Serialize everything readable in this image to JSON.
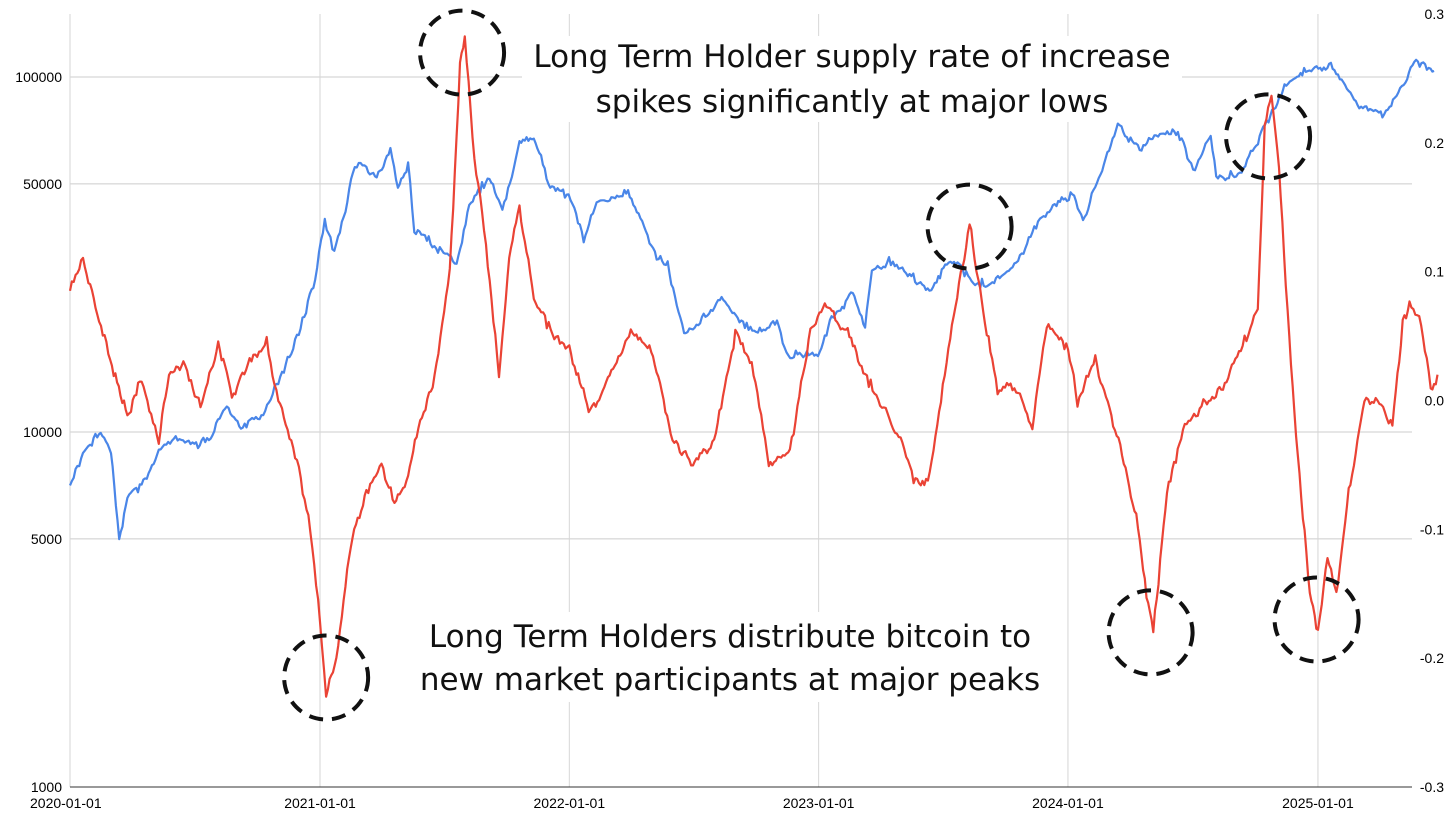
{
  "chart_data": {
    "type": "line",
    "title": "",
    "xlabel": "",
    "ylabel_left": "",
    "ylabel_right": "",
    "x_tick_labels": [
      "2020-01-01",
      "2021-01-01",
      "2022-01-01",
      "2023-01-01",
      "2024-01-01",
      "2025-01-01"
    ],
    "x_range": [
      "2020-01-01",
      "2025-06-30"
    ],
    "y_left": {
      "scale": "log",
      "range": [
        1000,
        150000
      ],
      "tick_labels": [
        "1000",
        "5000",
        "10000",
        "50000",
        "100000"
      ],
      "ticks": [
        1000,
        5000,
        10000,
        50000,
        100000
      ]
    },
    "y_right": {
      "scale": "linear",
      "range": [
        -0.3,
        0.3
      ],
      "tick_labels": [
        "-0.3",
        "-0.2",
        "-0.1",
        "0.0",
        "0.1",
        "0.2",
        "0.3"
      ],
      "ticks": [
        -0.3,
        -0.2,
        -0.1,
        0.0,
        0.1,
        0.2,
        0.3
      ]
    },
    "grid": true,
    "series": [
      {
        "key": "price",
        "axis": "left",
        "color": "#4a86e8",
        "points": [
          [
            "2020-01-01",
            7000
          ],
          [
            "2020-01-20",
            8800
          ],
          [
            "2020-02-15",
            10000
          ],
          [
            "2020-03-01",
            8700
          ],
          [
            "2020-03-13",
            5000
          ],
          [
            "2020-03-25",
            6500
          ],
          [
            "2020-04-20",
            7200
          ],
          [
            "2020-05-10",
            8800
          ],
          [
            "2020-06-01",
            9500
          ],
          [
            "2020-07-01",
            9200
          ],
          [
            "2020-07-25",
            9700
          ],
          [
            "2020-08-15",
            11800
          ],
          [
            "2020-09-10",
            10300
          ],
          [
            "2020-10-10",
            11300
          ],
          [
            "2020-11-01",
            13800
          ],
          [
            "2020-12-01",
            19000
          ],
          [
            "2020-12-25",
            27000
          ],
          [
            "2021-01-08",
            40000
          ],
          [
            "2021-01-22",
            32000
          ],
          [
            "2021-02-10",
            45000
          ],
          [
            "2021-02-21",
            57000
          ],
          [
            "2021-03-10",
            55000
          ],
          [
            "2021-03-25",
            52000
          ],
          [
            "2021-04-14",
            63000
          ],
          [
            "2021-04-25",
            49000
          ],
          [
            "2021-05-10",
            57000
          ],
          [
            "2021-05-19",
            37000
          ],
          [
            "2021-06-01",
            36000
          ],
          [
            "2021-06-20",
            33000
          ],
          [
            "2021-07-20",
            30000
          ],
          [
            "2021-08-10",
            45000
          ],
          [
            "2021-09-06",
            52000
          ],
          [
            "2021-09-25",
            42000
          ],
          [
            "2021-10-20",
            65000
          ],
          [
            "2021-11-10",
            68000
          ],
          [
            "2021-12-04",
            49000
          ],
          [
            "2021-12-31",
            47000
          ],
          [
            "2022-01-22",
            35000
          ],
          [
            "2022-02-10",
            44000
          ],
          [
            "2022-03-28",
            47000
          ],
          [
            "2022-04-15",
            40000
          ],
          [
            "2022-05-09",
            31000
          ],
          [
            "2022-05-25",
            29500
          ],
          [
            "2022-06-18",
            19000
          ],
          [
            "2022-07-01",
            19500
          ],
          [
            "2022-08-12",
            24000
          ],
          [
            "2022-09-15",
            20000
          ],
          [
            "2022-10-15",
            19200
          ],
          [
            "2022-11-01",
            20500
          ],
          [
            "2022-11-15",
            16500
          ],
          [
            "2022-12-31",
            16500
          ],
          [
            "2023-01-20",
            21000
          ],
          [
            "2023-02-20",
            24500
          ],
          [
            "2023-03-10",
            20000
          ],
          [
            "2023-03-20",
            28000
          ],
          [
            "2023-04-14",
            30400
          ],
          [
            "2023-05-01",
            29000
          ],
          [
            "2023-06-15",
            25000
          ],
          [
            "2023-07-13",
            31000
          ],
          [
            "2023-08-18",
            26000
          ],
          [
            "2023-09-15",
            26500
          ],
          [
            "2023-10-20",
            30000
          ],
          [
            "2023-11-10",
            37000
          ],
          [
            "2023-12-10",
            44000
          ],
          [
            "2024-01-10",
            46500
          ],
          [
            "2024-01-23",
            39500
          ],
          [
            "2024-02-15",
            52000
          ],
          [
            "2024-03-14",
            73000
          ],
          [
            "2024-04-15",
            63000
          ],
          [
            "2024-05-20",
            70000
          ],
          [
            "2024-06-10",
            69000
          ],
          [
            "2024-07-05",
            54000
          ],
          [
            "2024-07-28",
            69000
          ],
          [
            "2024-08-05",
            52000
          ],
          [
            "2024-09-06",
            53000
          ],
          [
            "2024-09-30",
            63000
          ],
          [
            "2024-11-13",
            93000
          ],
          [
            "2024-12-17",
            106000
          ],
          [
            "2025-01-20",
            108000
          ],
          [
            "2025-02-28",
            84000
          ],
          [
            "2025-04-08",
            77000
          ],
          [
            "2025-05-22",
            111000
          ],
          [
            "2025-06-20",
            104000
          ]
        ]
      },
      {
        "key": "lth_supply_rate",
        "axis": "right",
        "color": "#ea4335",
        "points": [
          [
            "2020-01-01",
            0.085
          ],
          [
            "2020-01-20",
            0.11
          ],
          [
            "2020-02-10",
            0.07
          ],
          [
            "2020-03-05",
            0.02
          ],
          [
            "2020-03-25",
            -0.01
          ],
          [
            "2020-04-15",
            0.015
          ],
          [
            "2020-05-10",
            -0.03
          ],
          [
            "2020-05-25",
            0.02
          ],
          [
            "2020-06-15",
            0.03
          ],
          [
            "2020-07-10",
            -0.005
          ],
          [
            "2020-08-05",
            0.045
          ],
          [
            "2020-08-25",
            0.005
          ],
          [
            "2020-09-20",
            0.03
          ],
          [
            "2020-10-15",
            0.045
          ],
          [
            "2020-11-01",
            0.0
          ],
          [
            "2020-11-20",
            -0.03
          ],
          [
            "2020-12-15",
            -0.09
          ],
          [
            "2021-01-01",
            -0.17
          ],
          [
            "2021-01-10",
            -0.23
          ],
          [
            "2021-01-25",
            -0.2
          ],
          [
            "2021-02-15",
            -0.11
          ],
          [
            "2021-03-10",
            -0.07
          ],
          [
            "2021-04-01",
            -0.05
          ],
          [
            "2021-04-20",
            -0.08
          ],
          [
            "2021-05-10",
            -0.06
          ],
          [
            "2021-05-25",
            -0.02
          ],
          [
            "2021-06-15",
            0.01
          ],
          [
            "2021-07-10",
            0.1
          ],
          [
            "2021-07-25",
            0.26
          ],
          [
            "2021-08-01",
            0.28
          ],
          [
            "2021-08-15",
            0.19
          ],
          [
            "2021-09-01",
            0.12
          ],
          [
            "2021-09-20",
            0.02
          ],
          [
            "2021-10-05",
            0.11
          ],
          [
            "2021-10-20",
            0.15
          ],
          [
            "2021-11-10",
            0.08
          ],
          [
            "2021-12-10",
            0.05
          ],
          [
            "2022-01-01",
            0.04
          ],
          [
            "2022-02-01",
            -0.01
          ],
          [
            "2022-03-01",
            0.02
          ],
          [
            "2022-04-01",
            0.055
          ],
          [
            "2022-05-01",
            0.04
          ],
          [
            "2022-06-01",
            -0.03
          ],
          [
            "2022-07-01",
            -0.05
          ],
          [
            "2022-08-01",
            -0.03
          ],
          [
            "2022-09-01",
            0.05
          ],
          [
            "2022-09-25",
            0.03
          ],
          [
            "2022-10-20",
            -0.05
          ],
          [
            "2022-11-20",
            -0.04
          ],
          [
            "2022-12-20",
            0.055
          ],
          [
            "2023-01-10",
            0.075
          ],
          [
            "2023-02-10",
            0.055
          ],
          [
            "2023-03-10",
            0.02
          ],
          [
            "2023-04-01",
            0.0
          ],
          [
            "2023-05-01",
            -0.03
          ],
          [
            "2023-05-20",
            -0.06
          ],
          [
            "2023-06-10",
            -0.065
          ],
          [
            "2023-07-10",
            0.04
          ],
          [
            "2023-08-10",
            0.138
          ],
          [
            "2023-08-30",
            0.07
          ],
          [
            "2023-09-20",
            0.01
          ],
          [
            "2023-10-20",
            0.01
          ],
          [
            "2023-11-10",
            -0.02
          ],
          [
            "2023-12-01",
            0.06
          ],
          [
            "2024-01-01",
            0.04
          ],
          [
            "2024-01-15",
            0.0
          ],
          [
            "2024-02-10",
            0.03
          ],
          [
            "2024-03-15",
            -0.03
          ],
          [
            "2024-04-10",
            -0.09
          ],
          [
            "2024-04-25",
            -0.15
          ],
          [
            "2024-05-05",
            -0.18
          ],
          [
            "2024-05-25",
            -0.07
          ],
          [
            "2024-06-20",
            -0.02
          ],
          [
            "2024-07-20",
            0.0
          ],
          [
            "2024-08-15",
            0.01
          ],
          [
            "2024-09-10",
            0.04
          ],
          [
            "2024-10-05",
            0.07
          ],
          [
            "2024-10-15",
            0.21
          ],
          [
            "2024-10-25",
            0.235
          ],
          [
            "2024-11-05",
            0.18
          ],
          [
            "2024-11-20",
            0.05
          ],
          [
            "2024-12-05",
            -0.06
          ],
          [
            "2024-12-20",
            -0.15
          ],
          [
            "2025-01-01",
            -0.18
          ],
          [
            "2025-01-15",
            -0.12
          ],
          [
            "2025-01-28",
            -0.15
          ],
          [
            "2025-02-15",
            -0.07
          ],
          [
            "2025-03-10",
            0.0
          ],
          [
            "2025-04-01",
            0.0
          ],
          [
            "2025-04-20",
            -0.02
          ],
          [
            "2025-05-05",
            0.06
          ],
          [
            "2025-05-15",
            0.075
          ],
          [
            "2025-06-01",
            0.06
          ],
          [
            "2025-06-15",
            0.01
          ],
          [
            "2025-06-25",
            0.02
          ]
        ]
      }
    ],
    "annotations": [
      {
        "key": "top",
        "lines": [
          "Long Term Holder supply rate of increase",
          "spikes significantly at major lows"
        ]
      },
      {
        "key": "bottom",
        "lines": [
          "Long Term Holders distribute bitcoin to",
          "new market participants at major peaks"
        ]
      }
    ],
    "highlight_circles": [
      {
        "date": "2021-01-10",
        "value": -0.215,
        "axis": "right"
      },
      {
        "date": "2021-07-28",
        "value": 0.27,
        "axis": "right"
      },
      {
        "date": "2023-08-10",
        "value": 0.135,
        "axis": "right"
      },
      {
        "date": "2024-05-01",
        "value": -0.18,
        "axis": "right"
      },
      {
        "date": "2024-10-20",
        "value": 0.205,
        "axis": "right"
      },
      {
        "date": "2024-12-30",
        "value": -0.17,
        "axis": "right"
      }
    ]
  }
}
